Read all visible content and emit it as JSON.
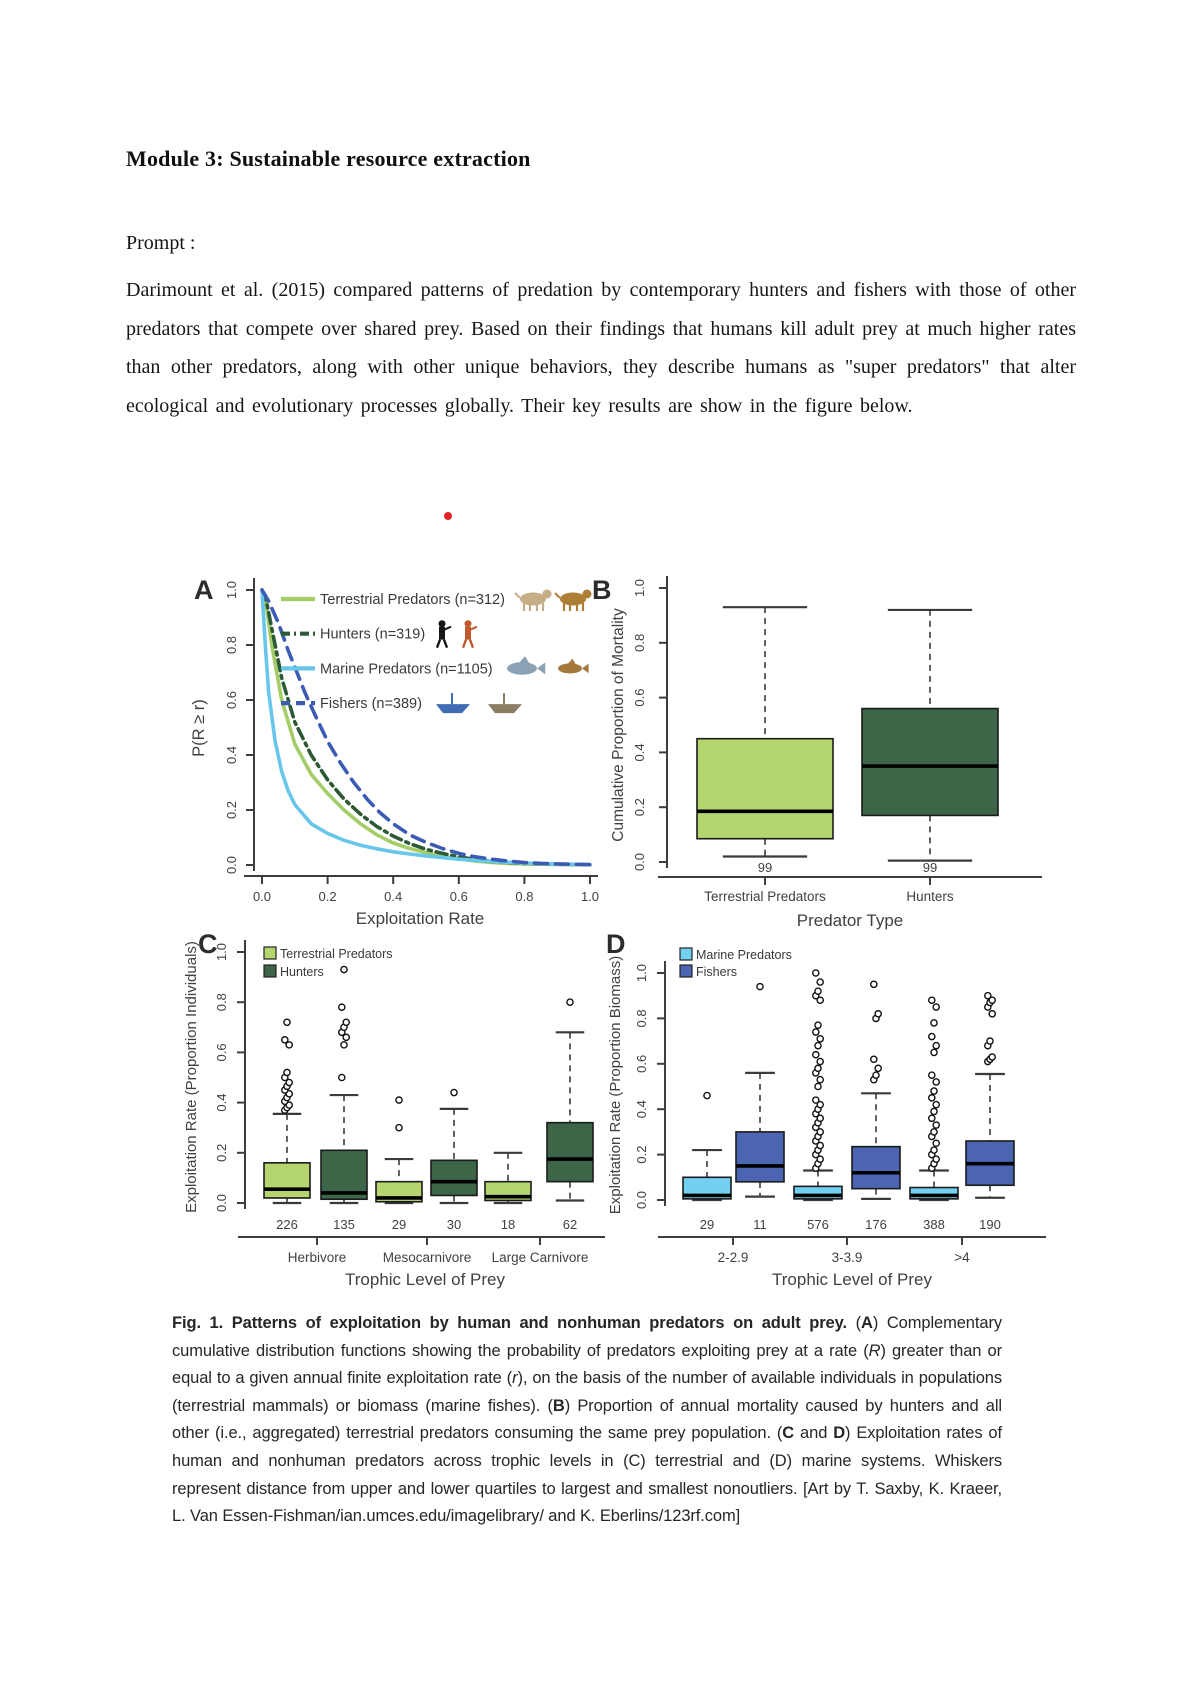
{
  "document": {
    "title": "Module 3: Sustainable resource extraction",
    "prompt_label": "Prompt :",
    "paragraph": "Darimount et al. (2015) compared patterns of predation by contemporary hunters and fishers with those of other predators that compete over shared prey. Based on their findings that humans kill adult prey at much higher rates than other predators, along with other unique behaviors, they describe humans as \"super predators\" that alter ecological and evolutionary processes globally. Their key results are show in the figure below."
  },
  "colors": {
    "red_dot": "#e02428",
    "light_green": "#b5d66f",
    "dark_green": "#3c6647",
    "light_blue": "#72d1f1",
    "dark_blue": "#4c65b2"
  },
  "figure": {
    "caption_segments": [
      {
        "style": "b",
        "text": "Fig. 1. Patterns of exploitation by human and nonhuman predators on adult prey. "
      },
      {
        "style": "n",
        "text": "("
      },
      {
        "style": "b",
        "text": "A"
      },
      {
        "style": "n",
        "text": ") Complementary cumulative distribution functions showing the probability of predators exploiting prey at a rate ("
      },
      {
        "style": "i",
        "text": "R"
      },
      {
        "style": "n",
        "text": ") greater than or equal to a given annual finite exploitation rate ("
      },
      {
        "style": "i",
        "text": "r"
      },
      {
        "style": "n",
        "text": "), on the basis of the number of available individuals in populations (terrestrial mammals) or biomass (marine fishes). ("
      },
      {
        "style": "b",
        "text": "B"
      },
      {
        "style": "n",
        "text": ") Proportion of annual mortality caused by hunters and all other (i.e., aggregated) terrestrial predators consuming the same prey population. ("
      },
      {
        "style": "b",
        "text": "C"
      },
      {
        "style": "n",
        "text": " and "
      },
      {
        "style": "b",
        "text": "D"
      },
      {
        "style": "n",
        "text": ") Exploitation rates of human and nonhuman predators across trophic levels in (C) terrestrial and (D) marine systems. Whiskers represent distance from upper and lower quartiles to largest and smallest nonoutliers. [Art by T. Saxby, K. Kraeer, L. Van Essen-Fishman/ian.umces.edu/imagelibrary/ and K. Eberlins/123rf.com]"
      }
    ]
  },
  "chart_data": [
    {
      "id": "A",
      "type": "line",
      "panel_label": "A",
      "xlabel": "Exploitation Rate",
      "ylabel": "P(R ≥ r)",
      "xlim": [
        0,
        1
      ],
      "ylim": [
        0,
        1
      ],
      "xticks": [
        "0.0",
        "0.2",
        "0.4",
        "0.6",
        "0.8",
        "1.0"
      ],
      "yticks": [
        "0.0",
        "0.2",
        "0.4",
        "0.6",
        "0.8",
        "1.0"
      ],
      "grid": false,
      "legend_position": "top-left-inside",
      "series": [
        {
          "name": "Terrestrial Predators (n=312)",
          "color": "#a4cc67",
          "dash": "solid",
          "art": "wolf-lion",
          "points": [
            [
              0,
              1
            ],
            [
              0.01,
              0.97
            ],
            [
              0.03,
              0.8
            ],
            [
              0.06,
              0.6
            ],
            [
              0.1,
              0.44
            ],
            [
              0.15,
              0.33
            ],
            [
              0.2,
              0.26
            ],
            [
              0.25,
              0.2
            ],
            [
              0.3,
              0.15
            ],
            [
              0.35,
              0.11
            ],
            [
              0.4,
              0.08
            ],
            [
              0.45,
              0.06
            ],
            [
              0.5,
              0.045
            ],
            [
              0.55,
              0.032
            ],
            [
              0.6,
              0.022
            ],
            [
              0.65,
              0.014
            ],
            [
              0.7,
              0.009
            ],
            [
              0.75,
              0.006
            ],
            [
              0.8,
              0.004
            ],
            [
              0.9,
              0.002
            ],
            [
              1,
              0.001
            ]
          ]
        },
        {
          "name": "Hunters (n=319)",
          "color": "#2c5a35",
          "dash": "dash-dot",
          "art": "hunters",
          "points": [
            [
              0,
              1
            ],
            [
              0.01,
              0.98
            ],
            [
              0.03,
              0.86
            ],
            [
              0.06,
              0.68
            ],
            [
              0.1,
              0.52
            ],
            [
              0.15,
              0.4
            ],
            [
              0.2,
              0.31
            ],
            [
              0.25,
              0.24
            ],
            [
              0.3,
              0.185
            ],
            [
              0.35,
              0.14
            ],
            [
              0.4,
              0.105
            ],
            [
              0.45,
              0.078
            ],
            [
              0.5,
              0.057
            ],
            [
              0.55,
              0.042
            ],
            [
              0.6,
              0.03
            ],
            [
              0.65,
              0.02
            ],
            [
              0.7,
              0.013
            ],
            [
              0.75,
              0.009
            ],
            [
              0.8,
              0.006
            ],
            [
              0.9,
              0.003
            ],
            [
              1,
              0.001
            ]
          ]
        },
        {
          "name": "Marine Predators (n=1105)",
          "color": "#67c6ea",
          "dash": "solid",
          "art": "shark-fish",
          "points": [
            [
              0,
              1
            ],
            [
              0.01,
              0.8
            ],
            [
              0.02,
              0.63
            ],
            [
              0.04,
              0.45
            ],
            [
              0.06,
              0.34
            ],
            [
              0.08,
              0.27
            ],
            [
              0.1,
              0.22
            ],
            [
              0.15,
              0.15
            ],
            [
              0.2,
              0.115
            ],
            [
              0.25,
              0.09
            ],
            [
              0.3,
              0.072
            ],
            [
              0.35,
              0.059
            ],
            [
              0.4,
              0.048
            ],
            [
              0.45,
              0.04
            ],
            [
              0.5,
              0.033
            ],
            [
              0.55,
              0.027
            ],
            [
              0.6,
              0.021
            ],
            [
              0.7,
              0.013
            ],
            [
              0.8,
              0.007
            ],
            [
              0.9,
              0.003
            ],
            [
              1,
              0.001
            ]
          ]
        },
        {
          "name": "Fishers (n=389)",
          "color": "#3c5cb4",
          "dash": "dashed",
          "art": "boats",
          "points": [
            [
              0,
              1
            ],
            [
              0.02,
              0.96
            ],
            [
              0.05,
              0.88
            ],
            [
              0.08,
              0.78
            ],
            [
              0.1,
              0.72
            ],
            [
              0.13,
              0.63
            ],
            [
              0.16,
              0.55
            ],
            [
              0.2,
              0.45
            ],
            [
              0.24,
              0.37
            ],
            [
              0.28,
              0.3
            ],
            [
              0.32,
              0.24
            ],
            [
              0.36,
              0.19
            ],
            [
              0.4,
              0.15
            ],
            [
              0.45,
              0.11
            ],
            [
              0.5,
              0.082
            ],
            [
              0.55,
              0.06
            ],
            [
              0.6,
              0.042
            ],
            [
              0.65,
              0.03
            ],
            [
              0.7,
              0.021
            ],
            [
              0.75,
              0.014
            ],
            [
              0.8,
              0.009
            ],
            [
              0.85,
              0.006
            ],
            [
              0.9,
              0.004
            ],
            [
              1,
              0.001
            ]
          ]
        }
      ]
    },
    {
      "id": "B",
      "type": "box",
      "panel_label": "B",
      "xlabel": "Predator Type",
      "ylabel": "Cumulative Proportion of Mortality",
      "ylim": [
        0,
        1
      ],
      "yticks": [
        "0.0",
        "0.2",
        "0.4",
        "0.6",
        "0.8",
        "1.0"
      ],
      "categories": [
        "Terrestrial Predators",
        "Hunters"
      ],
      "boxes": [
        {
          "label": "Terrestrial Predators",
          "n": "99",
          "color": "#b5d66f",
          "low": 0.02,
          "q1": 0.085,
          "median": 0.185,
          "q3": 0.45,
          "high": 0.93,
          "outliers": []
        },
        {
          "label": "Hunters",
          "n": "99",
          "color": "#3c6647",
          "low": 0.005,
          "q1": 0.17,
          "median": 0.35,
          "q3": 0.56,
          "high": 0.92,
          "outliers": []
        }
      ]
    },
    {
      "id": "C",
      "type": "box",
      "panel_label": "C",
      "xlabel": "Trophic Level of Prey",
      "ylabel": "Exploitation Rate (Proportion Individuals)",
      "ylim": [
        0,
        1
      ],
      "yticks": [
        "0.0",
        "0.2",
        "0.4",
        "0.6",
        "0.8",
        "1.0"
      ],
      "legend": [
        {
          "label": "Terrestrial Predators",
          "color": "#b5d66f"
        },
        {
          "label": "Hunters",
          "color": "#3c6647"
        }
      ],
      "groups": [
        "Herbivore",
        "Mesocarnivore",
        "Large Carnivore"
      ],
      "boxes": [
        {
          "group": "Herbivore",
          "series": "Terrestrial Predators",
          "n": "226",
          "color": "#b5d66f",
          "low": 0,
          "q1": 0.02,
          "median": 0.055,
          "q3": 0.16,
          "high": 0.355,
          "outliers": [
            0.37,
            0.38,
            0.39,
            0.405,
            0.42,
            0.435,
            0.45,
            0.465,
            0.48,
            0.5,
            0.52,
            0.63,
            0.65,
            0.72
          ]
        },
        {
          "group": "Herbivore",
          "series": "Hunters",
          "n": "135",
          "color": "#3c6647",
          "low": 0,
          "q1": 0.015,
          "median": 0.04,
          "q3": 0.21,
          "high": 0.43,
          "outliers": [
            0.5,
            0.63,
            0.66,
            0.68,
            0.7,
            0.72,
            0.78,
            0.93
          ]
        },
        {
          "group": "Mesocarnivore",
          "series": "Terrestrial Predators",
          "n": "29",
          "color": "#b5d66f",
          "low": 0,
          "q1": 0.005,
          "median": 0.02,
          "q3": 0.085,
          "high": 0.175,
          "outliers": [
            0.3,
            0.41
          ]
        },
        {
          "group": "Mesocarnivore",
          "series": "Hunters",
          "n": "30",
          "color": "#3c6647",
          "low": 0,
          "q1": 0.03,
          "median": 0.085,
          "q3": 0.17,
          "high": 0.375,
          "outliers": [
            0.44
          ]
        },
        {
          "group": "Large Carnivore",
          "series": "Terrestrial Predators",
          "n": "18",
          "color": "#b5d66f",
          "low": 0,
          "q1": 0.01,
          "median": 0.025,
          "q3": 0.085,
          "high": 0.2,
          "outliers": []
        },
        {
          "group": "Large Carnivore",
          "series": "Hunters",
          "n": "62",
          "color": "#3c6647",
          "low": 0.01,
          "q1": 0.085,
          "median": 0.175,
          "q3": 0.32,
          "high": 0.68,
          "outliers": [
            0.8
          ]
        }
      ]
    },
    {
      "id": "D",
      "type": "box",
      "panel_label": "D",
      "xlabel": "Trophic Level of Prey",
      "ylabel": "Exploitation Rate (Proportion Biomass)",
      "ylim": [
        0,
        1
      ],
      "yticks": [
        "0.0",
        "0.2",
        "0.4",
        "0.6",
        "0.8",
        "1.0"
      ],
      "legend": [
        {
          "label": "Marine Predators",
          "color": "#72d1f1"
        },
        {
          "label": "Fishers",
          "color": "#4c65b2"
        }
      ],
      "groups": [
        "2-2.9",
        "3-3.9",
        ">4"
      ],
      "boxes": [
        {
          "group": "2-2.9",
          "series": "Marine Predators",
          "n": "29",
          "color": "#72d1f1",
          "low": 0,
          "q1": 0.005,
          "median": 0.02,
          "q3": 0.1,
          "high": 0.22,
          "outliers": [
            0.46
          ]
        },
        {
          "group": "2-2.9",
          "series": "Fishers",
          "n": "11",
          "color": "#4c65b2",
          "low": 0.015,
          "q1": 0.08,
          "median": 0.15,
          "q3": 0.3,
          "high": 0.56,
          "outliers": [
            0.94
          ]
        },
        {
          "group": "3-3.9",
          "series": "Marine Predators",
          "n": "576",
          "color": "#72d1f1",
          "low": 0,
          "q1": 0.005,
          "median": 0.02,
          "q3": 0.06,
          "high": 0.13,
          "outliers": [
            0.14,
            0.16,
            0.18,
            0.2,
            0.22,
            0.24,
            0.26,
            0.28,
            0.3,
            0.32,
            0.34,
            0.36,
            0.38,
            0.4,
            0.42,
            0.44,
            0.5,
            0.53,
            0.56,
            0.58,
            0.61,
            0.64,
            0.68,
            0.71,
            0.74,
            0.77,
            0.88,
            0.9,
            0.92,
            0.96,
            1.0
          ]
        },
        {
          "group": "3-3.9",
          "series": "Fishers",
          "n": "176",
          "color": "#4c65b2",
          "low": 0.005,
          "q1": 0.05,
          "median": 0.12,
          "q3": 0.235,
          "high": 0.47,
          "outliers": [
            0.53,
            0.55,
            0.58,
            0.62,
            0.8,
            0.82,
            0.95
          ]
        },
        {
          "group": ">4",
          "series": "Marine Predators",
          "n": "388",
          "color": "#72d1f1",
          "low": 0,
          "q1": 0.005,
          "median": 0.02,
          "q3": 0.055,
          "high": 0.13,
          "outliers": [
            0.14,
            0.16,
            0.18,
            0.2,
            0.22,
            0.25,
            0.28,
            0.3,
            0.33,
            0.36,
            0.39,
            0.42,
            0.45,
            0.48,
            0.52,
            0.55,
            0.65,
            0.68,
            0.72,
            0.78,
            0.85,
            0.88
          ]
        },
        {
          "group": ">4",
          "series": "Fishers",
          "n": "190",
          "color": "#4c65b2",
          "low": 0.01,
          "q1": 0.065,
          "median": 0.16,
          "q3": 0.26,
          "high": 0.555,
          "outliers": [
            0.61,
            0.62,
            0.63,
            0.68,
            0.7,
            0.82,
            0.85,
            0.87,
            0.88,
            0.9
          ]
        }
      ]
    }
  ]
}
